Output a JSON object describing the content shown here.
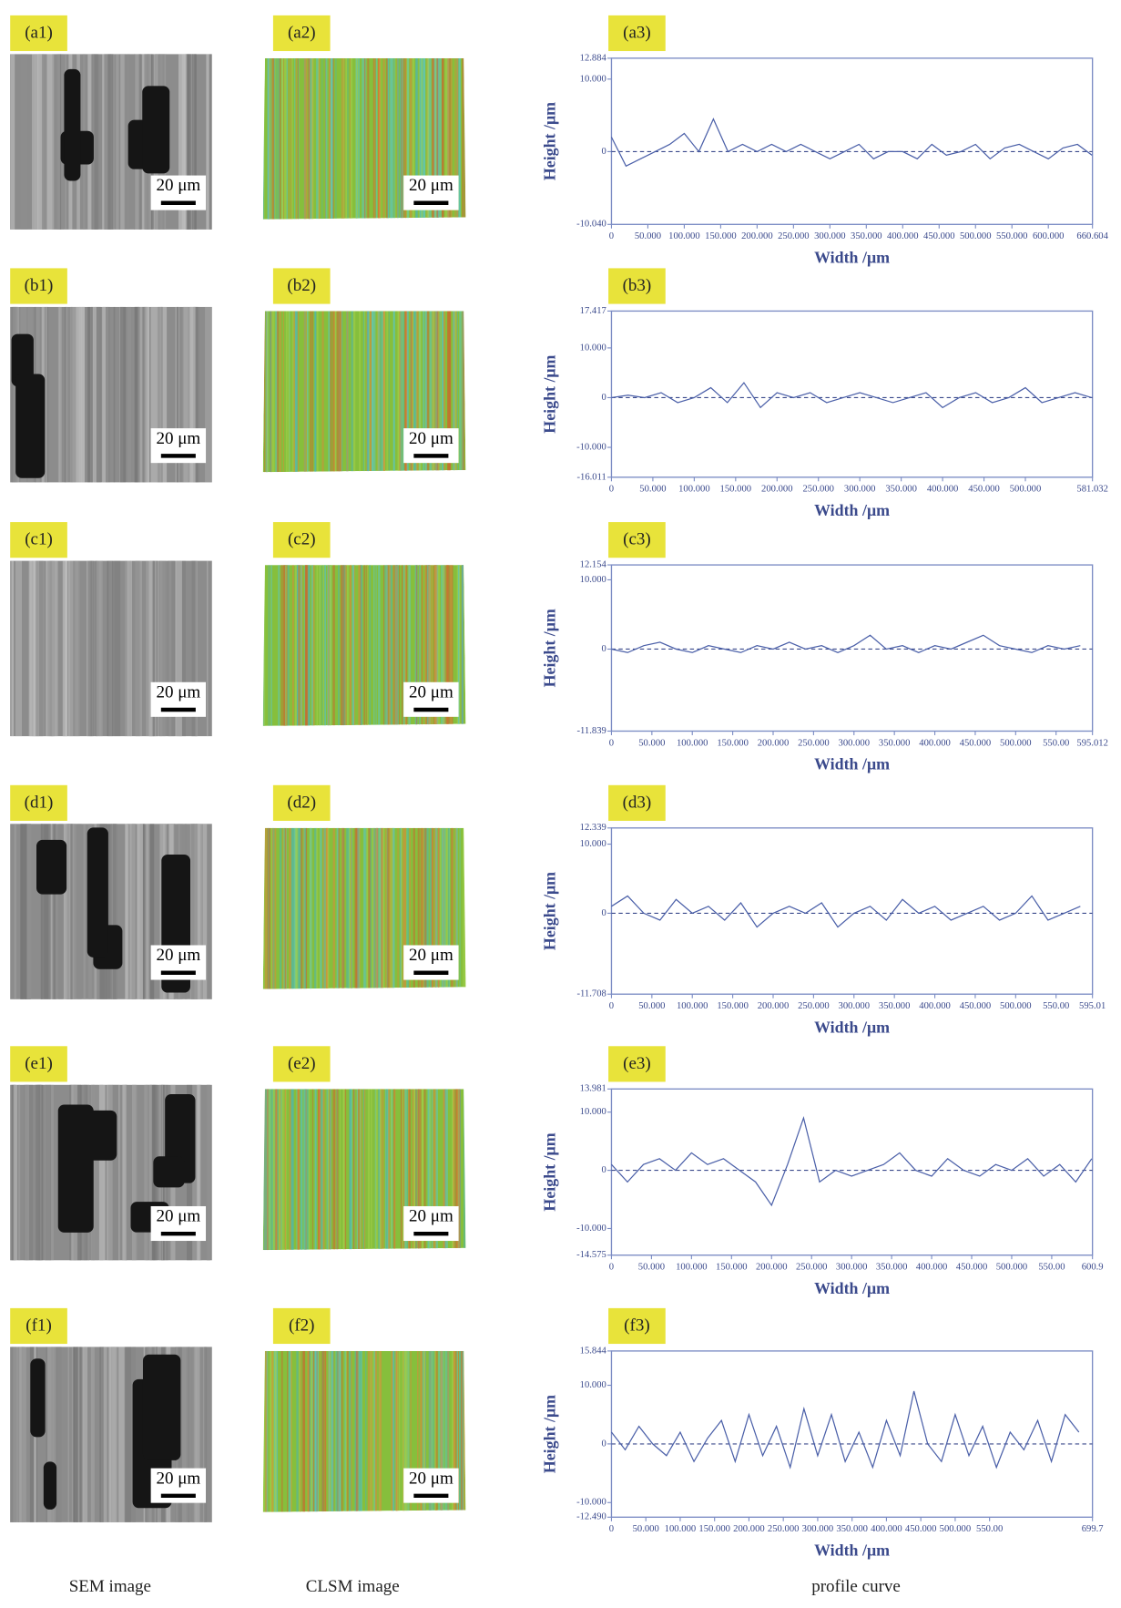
{
  "columns": [
    "SEM image",
    "CLSM image",
    "profile curve"
  ],
  "panels": [
    {
      "labels": [
        "(a1)",
        "(a2)"
      ],
      "scale_bars": [
        "20 μm",
        "20 μm"
      ]
    },
    {
      "labels": [
        "(b1)",
        "(b2)"
      ],
      "scale_bars": [
        "20 μm",
        "20 μm"
      ]
    },
    {
      "labels": [
        "(c1)",
        "(c2)"
      ],
      "scale_bars": [
        "20 μm",
        "20 μm"
      ]
    },
    {
      "labels": [
        "(d1)",
        "(d2)"
      ],
      "scale_bars": [
        "20 μm",
        "20 μm"
      ]
    },
    {
      "labels": [
        "(e1)",
        "(e2)"
      ],
      "scale_bars": [
        "20 μm",
        "20 μm"
      ]
    },
    {
      "labels": [
        "(f1)",
        "(f2)"
      ],
      "scale_bars": [
        "20 μm",
        "20 μm"
      ]
    }
  ],
  "chart_data": [
    {
      "type": "line",
      "title": "(a3)",
      "x_label": "Width /μm",
      "y_label": "Height /μm",
      "color": "#4a5fa8",
      "x": [
        0,
        20,
        40,
        60,
        80,
        100,
        120,
        140,
        160,
        180,
        200,
        220,
        240,
        260,
        280,
        300,
        320,
        340,
        360,
        380,
        400,
        420,
        440,
        460,
        480,
        500,
        520,
        540,
        560,
        580,
        600,
        620,
        640,
        660
      ],
      "values": [
        2,
        -2,
        -1,
        0,
        1,
        2.5,
        0,
        4.5,
        0,
        1,
        0,
        1,
        0,
        1,
        0,
        -1,
        0,
        1,
        -1,
        0,
        0,
        -1,
        1,
        -0.5,
        0,
        1,
        -1,
        0.5,
        1,
        0,
        -1,
        0.5,
        1,
        -0.5
      ],
      "xlim": [
        0,
        660.604
      ],
      "xticks": [
        0,
        {
          "value": 50,
          "label": "50.000"
        },
        {
          "value": 100,
          "label": "100.000"
        },
        {
          "value": 150,
          "label": "150.000"
        },
        {
          "value": 200,
          "label": "200.000"
        },
        {
          "value": 250,
          "label": "250.000"
        },
        {
          "value": 300,
          "label": "300.000"
        },
        {
          "value": 350,
          "label": "350.000"
        },
        {
          "value": 400,
          "label": "400.000"
        },
        {
          "value": 450,
          "label": "450.000"
        },
        {
          "value": 500,
          "label": "500.000"
        },
        {
          "value": 550,
          "label": "550.000"
        },
        {
          "value": 600,
          "label": "600.000"
        },
        660.604
      ],
      "ylim": [
        -10.04,
        12.884
      ],
      "yticks": [
        12.884,
        {
          "value": 10,
          "label": "10.000"
        },
        0,
        {
          "value": -10.04,
          "label": "-10.040"
        }
      ]
    },
    {
      "type": "line",
      "title": "(b3)",
      "x_label": "Width /μm",
      "y_label": "Height /μm",
      "color": "#4a5fa8",
      "x": [
        0,
        20,
        40,
        60,
        80,
        100,
        120,
        140,
        160,
        180,
        200,
        220,
        240,
        260,
        280,
        300,
        320,
        340,
        360,
        380,
        400,
        420,
        440,
        460,
        480,
        500,
        520,
        540,
        560,
        580
      ],
      "values": [
        0,
        0.5,
        0,
        1,
        -1,
        0,
        2,
        -1,
        3,
        -2,
        1,
        0,
        1,
        -1,
        0,
        1,
        0,
        -1,
        0,
        1,
        -2,
        0,
        1,
        -1,
        0,
        2,
        -1,
        0,
        1,
        0
      ],
      "xlim": [
        0,
        581.032
      ],
      "xticks": [
        0,
        {
          "value": 50,
          "label": "50.000"
        },
        {
          "value": 100,
          "label": "100.000"
        },
        {
          "value": 150,
          "label": "150.000"
        },
        {
          "value": 200,
          "label": "200.000"
        },
        {
          "value": 250,
          "label": "250.000"
        },
        {
          "value": 300,
          "label": "300.000"
        },
        {
          "value": 350,
          "label": "350.000"
        },
        {
          "value": 400,
          "label": "400.000"
        },
        {
          "value": 450,
          "label": "450.000"
        },
        {
          "value": 500,
          "label": "500.000"
        },
        581.032
      ],
      "ylim": [
        -16.011,
        17.417
      ],
      "yticks": [
        17.417,
        {
          "value": 10,
          "label": "10.000"
        },
        0,
        {
          "value": -10,
          "label": "-10.000"
        },
        -16.011
      ]
    },
    {
      "type": "line",
      "title": "(c3)",
      "x_label": "Width /μm",
      "y_label": "Height /μm",
      "color": "#4a5fa8",
      "x": [
        0,
        20,
        40,
        60,
        80,
        100,
        120,
        140,
        160,
        180,
        200,
        220,
        240,
        260,
        280,
        300,
        320,
        340,
        360,
        380,
        400,
        420,
        440,
        460,
        480,
        500,
        520,
        540,
        560,
        580
      ],
      "values": [
        0,
        -0.5,
        0.5,
        1,
        0,
        -0.5,
        0.5,
        0,
        -0.5,
        0.5,
        0,
        1,
        0,
        0.5,
        -0.5,
        0.5,
        2,
        0,
        0.5,
        -0.5,
        0.5,
        0,
        1,
        2,
        0.5,
        0,
        -0.5,
        0.5,
        0,
        0.5
      ],
      "xlim": [
        0,
        595.012
      ],
      "xticks": [
        0,
        {
          "value": 50,
          "label": "50.000"
        },
        {
          "value": 100,
          "label": "100.000"
        },
        {
          "value": 150,
          "label": "150.000"
        },
        {
          "value": 200,
          "label": "200.000"
        },
        {
          "value": 250,
          "label": "250.000"
        },
        {
          "value": 300,
          "label": "300.000"
        },
        {
          "value": 350,
          "label": "350.000"
        },
        {
          "value": 400,
          "label": "400.000"
        },
        {
          "value": 450,
          "label": "450.000"
        },
        {
          "value": 500,
          "label": "500.000"
        },
        {
          "value": 550,
          "label": "550.00"
        },
        595.012
      ],
      "ylim": [
        -11.839,
        12.154
      ],
      "yticks": [
        12.154,
        {
          "value": 10,
          "label": "10.000"
        },
        0,
        -11.839
      ]
    },
    {
      "type": "line",
      "title": "(d3)",
      "x_label": "Width /μm",
      "y_label": "Height /μm",
      "color": "#4a5fa8",
      "x": [
        0,
        20,
        40,
        60,
        80,
        100,
        120,
        140,
        160,
        180,
        200,
        220,
        240,
        260,
        280,
        300,
        320,
        340,
        360,
        380,
        400,
        420,
        440,
        460,
        480,
        500,
        520,
        540,
        560,
        580
      ],
      "values": [
        1,
        2.5,
        0,
        -1,
        2,
        0,
        1,
        -1,
        1.5,
        -2,
        0,
        1,
        0,
        1.5,
        -2,
        0,
        1,
        -1,
        2,
        0,
        1,
        -1,
        0,
        1,
        -1,
        0,
        2.5,
        -1,
        0,
        1
      ],
      "xlim": [
        0,
        595.01
      ],
      "xticks": [
        0,
        {
          "value": 50,
          "label": "50.000"
        },
        {
          "value": 100,
          "label": "100.000"
        },
        {
          "value": 150,
          "label": "150.000"
        },
        {
          "value": 200,
          "label": "200.000"
        },
        {
          "value": 250,
          "label": "250.000"
        },
        {
          "value": 300,
          "label": "300.000"
        },
        {
          "value": 350,
          "label": "350.000"
        },
        {
          "value": 400,
          "label": "400.000"
        },
        {
          "value": 450,
          "label": "450.000"
        },
        {
          "value": 500,
          "label": "500.000"
        },
        {
          "value": 550,
          "label": "550.00"
        },
        595.01
      ],
      "ylim": [
        -11.708,
        12.339
      ],
      "yticks": [
        12.339,
        {
          "value": 10,
          "label": "10.000"
        },
        0,
        -11.708
      ]
    },
    {
      "type": "line",
      "title": "(e3)",
      "x_label": "Width /μm",
      "y_label": "Height /μm",
      "color": "#4a5fa8",
      "x": [
        0,
        20,
        40,
        60,
        80,
        100,
        120,
        140,
        160,
        180,
        200,
        220,
        240,
        260,
        280,
        300,
        320,
        340,
        360,
        380,
        400,
        420,
        440,
        460,
        480,
        500,
        520,
        540,
        560,
        580,
        600
      ],
      "values": [
        1,
        -2,
        1,
        2,
        0,
        3,
        1,
        2,
        0,
        -2,
        -6,
        1,
        9,
        -2,
        0,
        -1,
        0,
        1,
        3,
        0,
        -1,
        2,
        0,
        -1,
        1,
        0,
        2,
        -1,
        1,
        -2,
        2
      ],
      "xlim": [
        0,
        600.9
      ],
      "xticks": [
        0,
        {
          "value": 50,
          "label": "50.000"
        },
        {
          "value": 100,
          "label": "100.000"
        },
        {
          "value": 150,
          "label": "150.000"
        },
        {
          "value": 200,
          "label": "200.000"
        },
        {
          "value": 250,
          "label": "250.000"
        },
        {
          "value": 300,
          "label": "300.000"
        },
        {
          "value": 350,
          "label": "350.000"
        },
        {
          "value": 400,
          "label": "400.000"
        },
        {
          "value": 450,
          "label": "450.000"
        },
        {
          "value": 500,
          "label": "500.000"
        },
        {
          "value": 550,
          "label": "550.00"
        },
        600.9
      ],
      "ylim": [
        -14.575,
        13.981
      ],
      "yticks": [
        13.981,
        {
          "value": 10,
          "label": "10.000"
        },
        0,
        {
          "value": -10,
          "label": "-10.000"
        },
        -14.575
      ]
    },
    {
      "type": "line",
      "title": "(f3)",
      "x_label": "Width /μm",
      "y_label": "Height /μm",
      "color": "#4a5fa8",
      "x": [
        0,
        20,
        40,
        60,
        80,
        100,
        120,
        140,
        160,
        180,
        200,
        220,
        240,
        260,
        280,
        300,
        320,
        340,
        360,
        380,
        400,
        420,
        440,
        460,
        480,
        500,
        520,
        540,
        560,
        580,
        600,
        620,
        640,
        660,
        680
      ],
      "values": [
        2,
        -1,
        3,
        0,
        -2,
        2,
        -3,
        1,
        4,
        -3,
        5,
        -2,
        3,
        -4,
        6,
        -2,
        5,
        -3,
        2,
        -4,
        4,
        -2,
        9,
        0,
        -3,
        5,
        -2,
        3,
        -4,
        2,
        -1,
        4,
        -3,
        5,
        2
      ],
      "xlim": [
        0,
        699.7
      ],
      "xticks": [
        0,
        {
          "value": 50,
          "label": "50.000"
        },
        {
          "value": 100,
          "label": "100.000"
        },
        {
          "value": 150,
          "label": "150.000"
        },
        {
          "value": 200,
          "label": "200.000"
        },
        {
          "value": 250,
          "label": "250.000"
        },
        {
          "value": 300,
          "label": "300.000"
        },
        {
          "value": 350,
          "label": "350.000"
        },
        {
          "value": 400,
          "label": "400.000"
        },
        {
          "value": 450,
          "label": "450.000"
        },
        {
          "value": 500,
          "label": "500.000"
        },
        {
          "value": 550,
          "label": "550.00"
        },
        699.7
      ],
      "ylim": [
        -12.49,
        15.844
      ],
      "yticks": [
        15.844,
        {
          "value": 10,
          "label": "10.000"
        },
        0,
        {
          "value": -10,
          "label": "-10.000"
        },
        {
          "value": -12.49,
          "label": "-12.490"
        }
      ]
    }
  ]
}
